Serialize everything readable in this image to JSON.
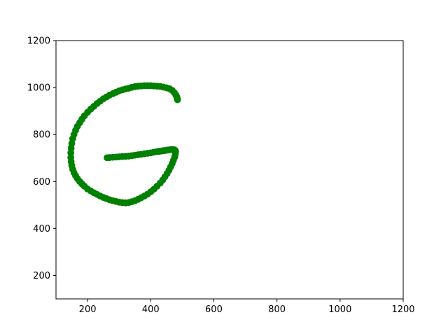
{
  "chart_data": {
    "type": "scatter",
    "title": "",
    "xlabel": "",
    "ylabel": "",
    "xlim": [
      100,
      1200
    ],
    "ylim": [
      100,
      1200
    ],
    "x_ticks": [
      200,
      400,
      600,
      800,
      1000,
      1200
    ],
    "y_ticks": [
      200,
      400,
      600,
      800,
      1000,
      1200
    ],
    "grid": false,
    "legend": "none",
    "marker_color": "#008000",
    "series": [
      {
        "x": [
          485,
          484,
          483,
          480,
          475,
          468,
          460,
          450,
          440,
          430,
          420,
          410,
          400,
          390,
          380,
          370,
          360,
          350,
          340,
          330,
          320,
          310,
          300,
          290,
          280,
          270,
          260,
          250,
          240,
          230,
          220,
          210,
          200,
          190,
          182,
          175,
          168,
          162,
          157,
          153,
          150,
          148,
          147,
          147,
          148,
          150,
          153,
          157,
          162,
          168,
          175,
          182,
          190,
          200,
          210,
          220,
          230,
          240,
          250,
          260,
          270,
          280,
          290,
          300,
          310,
          320,
          330,
          340,
          350,
          360,
          370,
          380,
          390,
          400,
          410,
          420,
          430,
          438,
          445,
          452,
          458,
          463,
          468,
          472,
          476,
          478,
          479,
          478,
          475,
          470,
          465,
          460,
          455,
          450,
          445,
          440,
          435,
          430,
          425,
          420,
          410,
          400,
          390,
          380,
          370,
          360,
          350,
          340,
          330,
          320,
          310,
          300,
          290,
          280,
          270,
          262
        ],
        "y": [
          948,
          952,
          960,
          968,
          978,
          988,
          995,
          999,
          1002,
          1005,
          1006,
          1007,
          1008,
          1008,
          1008,
          1007,
          1006,
          1004,
          1001,
          997,
          994,
          990,
          986,
          980,
          974,
          968,
          960,
          952,
          942,
          932,
          920,
          908,
          895,
          880,
          865,
          850,
          835,
          818,
          800,
          782,
          762,
          742,
          722,
          702,
          684,
          668,
          652,
          638,
          625,
          612,
          600,
          590,
          580,
          568,
          560,
          552,
          545,
          538,
          532,
          527,
          522,
          518,
          515,
          512,
          510,
          509,
          510,
          514,
          518,
          524,
          531,
          538,
          546,
          556,
          567,
          580,
          593,
          606,
          620,
          634,
          648,
          662,
          676,
          690,
          704,
          716,
          727,
          732,
          735,
          736,
          736,
          735,
          734,
          733,
          732,
          731,
          730,
          729,
          728,
          727,
          725,
          722,
          720,
          718,
          716,
          714,
          712,
          710,
          708,
          707,
          706,
          705,
          704,
          703,
          702,
          701
        ]
      }
    ]
  }
}
